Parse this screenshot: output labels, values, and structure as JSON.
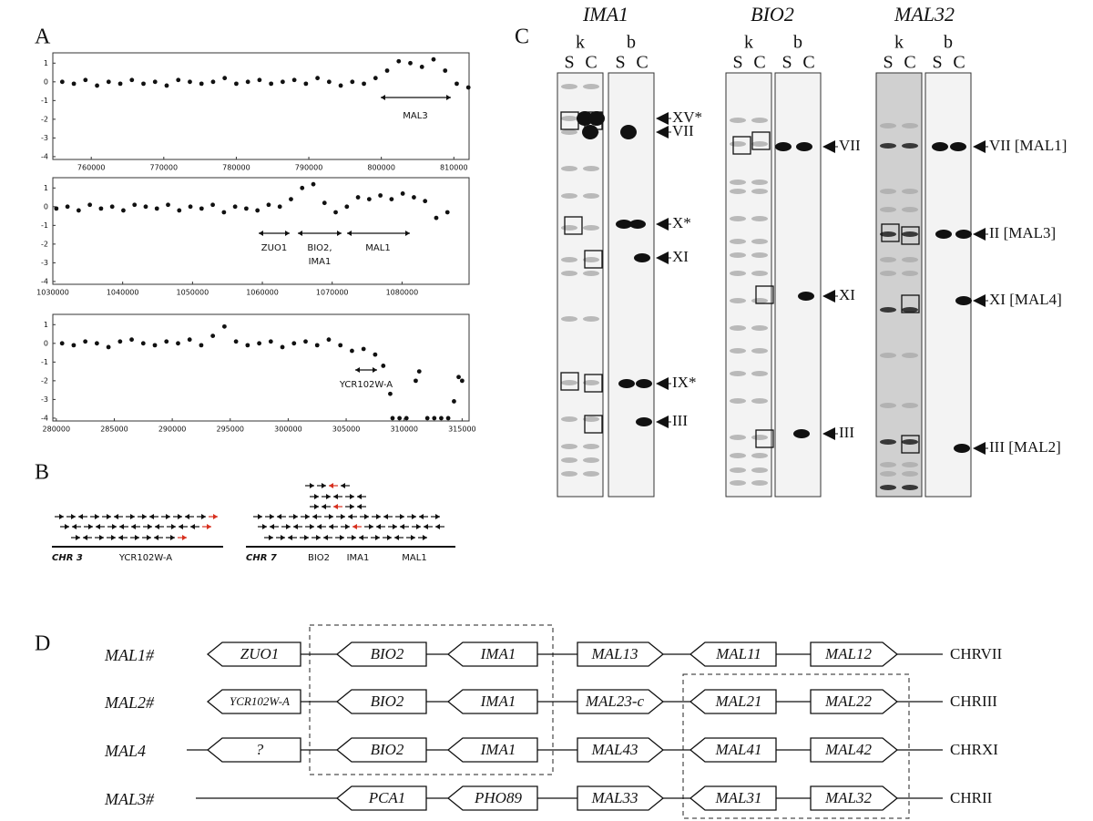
{
  "panel_labels": [
    "A",
    "B",
    "C",
    "D"
  ],
  "chart_data": [
    {
      "type": "scatter",
      "x": [
        756000,
        757600,
        759200,
        760800,
        762400,
        764000,
        765600,
        767200,
        768800,
        770400,
        772000,
        773600,
        775200,
        776800,
        778400,
        780000,
        781600,
        783200,
        784800,
        786400,
        788000,
        789600,
        791200,
        792800,
        794400,
        796000,
        797600,
        799200,
        800800,
        802400,
        804000,
        805600,
        807200,
        808800,
        810400,
        812000
      ],
      "values": [
        0.0,
        -0.1,
        0.1,
        -0.2,
        0.0,
        -0.1,
        0.1,
        -0.1,
        0.0,
        -0.2,
        0.1,
        0.0,
        -0.1,
        0.0,
        0.2,
        -0.1,
        0.0,
        0.1,
        -0.1,
        0.0,
        0.1,
        -0.1,
        0.2,
        0.0,
        -0.2,
        0.0,
        -0.1,
        0.2,
        0.6,
        1.1,
        1.0,
        0.8,
        1.2,
        0.6,
        -0.1,
        -0.3
      ],
      "xlim": [
        754700,
        812100
      ],
      "ylim": [
        -4.15,
        1.55
      ],
      "xticks": [
        760000,
        770000,
        780000,
        790000,
        800000,
        810000
      ],
      "yticks": [
        1,
        0,
        -1,
        -2,
        -3,
        -4
      ],
      "color": "#111111",
      "annotations": [
        "MAL3"
      ]
    },
    {
      "type": "scatter",
      "x": [
        1030500,
        1032100,
        1033700,
        1035300,
        1036900,
        1038500,
        1040100,
        1041700,
        1043300,
        1044900,
        1046500,
        1048100,
        1049700,
        1051300,
        1052900,
        1054500,
        1056100,
        1057700,
        1059300,
        1060900,
        1062500,
        1064100,
        1065700,
        1067300,
        1068900,
        1070500,
        1072100,
        1073700,
        1075300,
        1076900,
        1078500,
        1080100,
        1081700,
        1083300,
        1084900,
        1086500
      ],
      "values": [
        -0.1,
        0.0,
        -0.2,
        0.1,
        -0.1,
        0.0,
        -0.2,
        0.1,
        0.0,
        -0.1,
        0.1,
        -0.2,
        0.0,
        -0.1,
        0.1,
        -0.3,
        0.0,
        -0.1,
        -0.2,
        0.1,
        0.0,
        0.4,
        1.0,
        1.2,
        0.2,
        -0.3,
        0.0,
        0.5,
        0.4,
        0.6,
        0.4,
        0.7,
        0.5,
        0.3,
        -0.6,
        -0.3
      ],
      "xlim": [
        1030000,
        1089600
      ],
      "ylim": [
        -4.15,
        1.55
      ],
      "xticks": [
        1030000,
        1040000,
        1050000,
        1060000,
        1070000,
        1080000
      ],
      "yticks": [
        1,
        0,
        -1,
        -2,
        -3,
        -4
      ],
      "color": "#111111",
      "annotations": [
        "ZUO1",
        "BIO2,",
        "IMA1",
        "MAL1"
      ]
    },
    {
      "type": "scatter",
      "x": [
        280500,
        281500,
        282500,
        283500,
        284500,
        285500,
        286500,
        287500,
        288500,
        289500,
        290500,
        291500,
        292500,
        293500,
        294500,
        295500,
        296500,
        297500,
        298500,
        299500,
        300500,
        301500,
        302500,
        303500,
        304500,
        305500,
        306500,
        307500,
        308200,
        308800,
        309000,
        309600,
        310200,
        311000,
        311300,
        312000,
        312600,
        313200,
        313800,
        314300,
        314700,
        315000
      ],
      "values": [
        0.0,
        -0.1,
        0.1,
        0.0,
        -0.2,
        0.1,
        0.2,
        0.0,
        -0.1,
        0.1,
        0.0,
        0.2,
        -0.1,
        0.4,
        0.9,
        0.1,
        -0.1,
        0.0,
        0.1,
        -0.2,
        0.0,
        0.1,
        -0.1,
        0.2,
        -0.1,
        -0.4,
        -0.3,
        -0.6,
        -1.2,
        -2.7,
        -4.0,
        -4.0,
        -4.0,
        -2.0,
        -1.5,
        -4.0,
        -4.0,
        -4.0,
        -4.0,
        -3.1,
        -1.8,
        -2.0
      ],
      "xlim": [
        279700,
        315600
      ],
      "ylim": [
        -4.15,
        1.55
      ],
      "xticks": [
        280000,
        285000,
        290000,
        295000,
        300000,
        305000,
        310000,
        315000
      ],
      "yticks": [
        1,
        0,
        -1,
        -2,
        -3,
        -4
      ],
      "color": "#111111",
      "annotations": [
        "YCR102W-A"
      ]
    }
  ],
  "panel_b": {
    "groups": [
      {
        "chromosome": "CHR 3",
        "genes": [
          "YCR102W-A"
        ]
      },
      {
        "chromosome": "CHR 7",
        "genes": [
          "BIO2",
          "IMA1",
          "MAL1"
        ]
      }
    ]
  },
  "panel_c": {
    "gels": [
      {
        "gene": "IMA1",
        "lanes": [
          "k",
          "b"
        ],
        "samples": [
          "S",
          "C",
          "S",
          "C"
        ],
        "bands": [
          "XV*",
          "VII",
          "X*",
          "XI",
          "IX*",
          "III"
        ]
      },
      {
        "gene": "BIO2",
        "lanes": [
          "k",
          "b"
        ],
        "samples": [
          "S",
          "C",
          "S",
          "C"
        ],
        "bands": [
          "VII",
          "XI",
          "III"
        ]
      },
      {
        "gene": "MAL32",
        "lanes": [
          "k",
          "b"
        ],
        "samples": [
          "S",
          "C",
          "S",
          "C"
        ],
        "bands": [
          "VII [MAL1]",
          "II [MAL3]",
          "XI [MAL4]",
          "III [MAL2]"
        ]
      }
    ]
  },
  "panel_d": {
    "rows": [
      {
        "name": "MAL1#",
        "genes": [
          "ZUO1",
          "BIO2",
          "IMA1",
          "MAL13",
          "MAL11",
          "MAL12"
        ],
        "chromosome": "CHRVII"
      },
      {
        "name": "MAL2#",
        "genes": [
          "YCR102W-A",
          "BIO2",
          "IMA1",
          "MAL23-c",
          "MAL21",
          "MAL22"
        ],
        "chromosome": "CHRIII"
      },
      {
        "name": "MAL4",
        "genes": [
          "?",
          "BIO2",
          "IMA1",
          "MAL43",
          "MAL41",
          "MAL42"
        ],
        "chromosome": "CHRXI"
      },
      {
        "name": "MAL3#",
        "genes": [
          "PCA1",
          "PHO89",
          "MAL33",
          "MAL31",
          "MAL32"
        ],
        "chromosome": "CHRII"
      }
    ]
  }
}
